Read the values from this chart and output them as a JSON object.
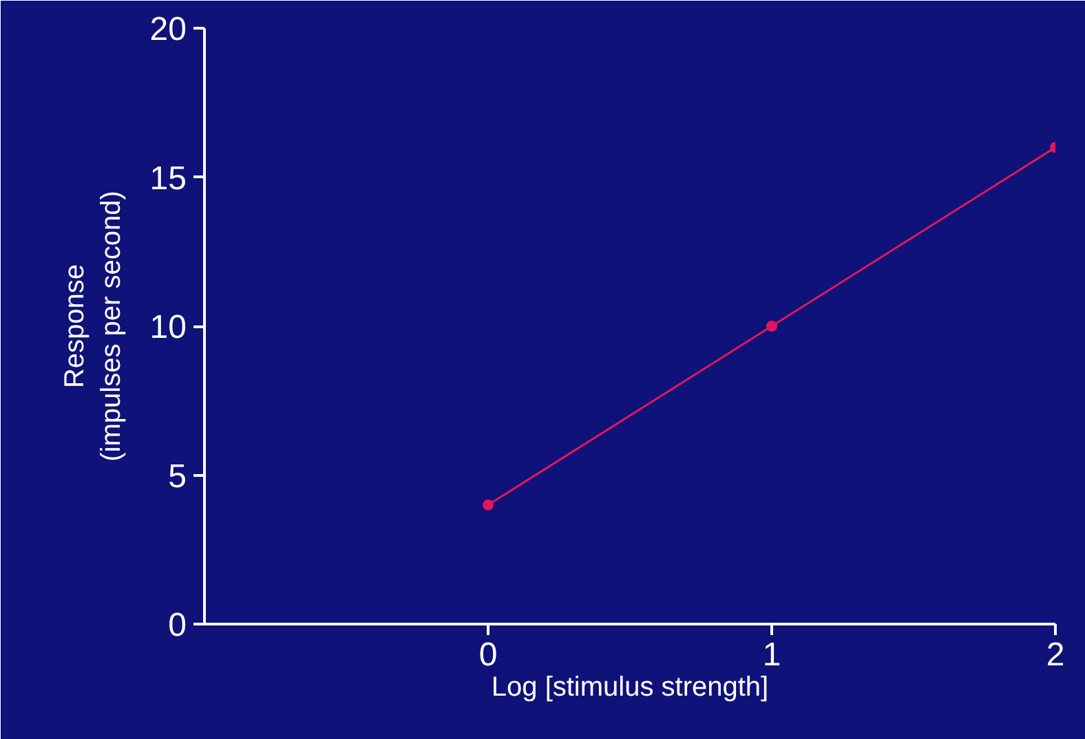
{
  "chart_data": {
    "type": "line",
    "xlabel": "Log [stimulus strength]",
    "ylabel": "Response\n(impulses per second)",
    "x": [
      0,
      1,
      2
    ],
    "series": [
      {
        "color": "#e0185a",
        "values": [
          4,
          10,
          16
        ]
      }
    ],
    "xlim": [
      -1,
      2
    ],
    "xticks": [
      0,
      1,
      2
    ],
    "ylim": [
      0,
      20
    ],
    "yticks": [
      0,
      5,
      10,
      15,
      20
    ],
    "grid": false,
    "marker": "circle",
    "line_style": "solid"
  }
}
